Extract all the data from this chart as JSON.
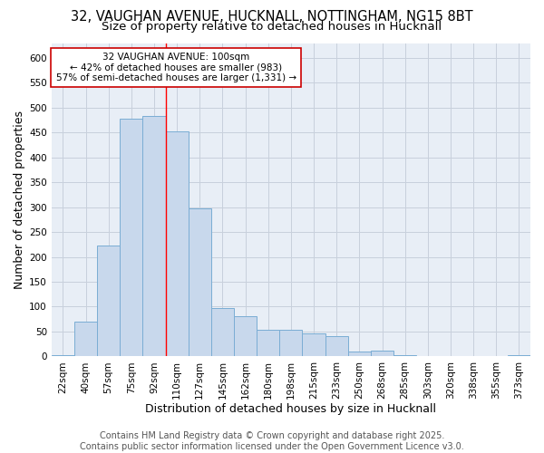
{
  "title_line1": "32, VAUGHAN AVENUE, HUCKNALL, NOTTINGHAM, NG15 8BT",
  "title_line2": "Size of property relative to detached houses in Hucknall",
  "xlabel": "Distribution of detached houses by size in Hucknall",
  "ylabel": "Number of detached properties",
  "categories": [
    "22sqm",
    "40sqm",
    "57sqm",
    "75sqm",
    "92sqm",
    "110sqm",
    "127sqm",
    "145sqm",
    "162sqm",
    "180sqm",
    "198sqm",
    "215sqm",
    "233sqm",
    "250sqm",
    "268sqm",
    "285sqm",
    "303sqm",
    "320sqm",
    "338sqm",
    "355sqm",
    "373sqm"
  ],
  "values": [
    2,
    70,
    222,
    478,
    483,
    452,
    297,
    97,
    80,
    54,
    53,
    46,
    41,
    10,
    12,
    3,
    1,
    0,
    0,
    0,
    3
  ],
  "bar_color": "#c8d8ec",
  "bar_edge_color": "#7aadd4",
  "redline_x": 4.5,
  "annotation_line1": "32 VAUGHAN AVENUE: 100sqm",
  "annotation_line2": "← 42% of detached houses are smaller (983)",
  "annotation_line3": "57% of semi-detached houses are larger (1,331) →",
  "annotation_box_color": "#ffffff",
  "annotation_box_edgecolor": "#cc0000",
  "ylim": [
    0,
    630
  ],
  "yticks": [
    0,
    50,
    100,
    150,
    200,
    250,
    300,
    350,
    400,
    450,
    500,
    550,
    600
  ],
  "grid_color": "#c8d0dc",
  "background_color": "#e8eef6",
  "footer_text": "Contains HM Land Registry data © Crown copyright and database right 2025.\nContains public sector information licensed under the Open Government Licence v3.0.",
  "title_fontsize": 10.5,
  "subtitle_fontsize": 9.5,
  "tick_fontsize": 7.5,
  "axis_label_fontsize": 9,
  "annotation_fontsize": 7.5,
  "footer_fontsize": 7
}
